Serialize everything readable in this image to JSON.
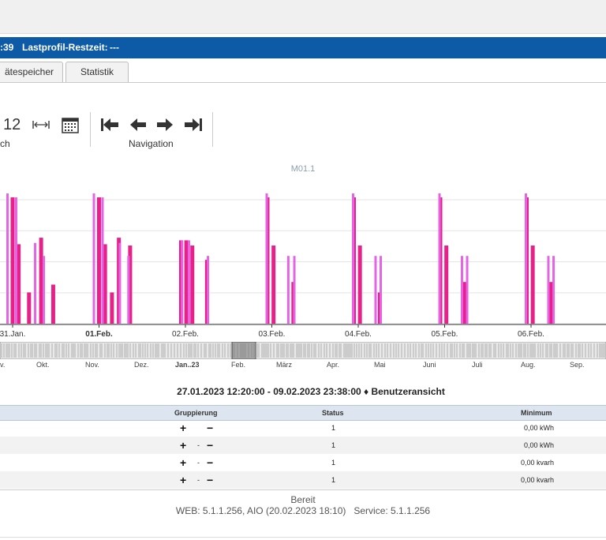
{
  "header": {
    "time_fragment": ":39",
    "lastprofil_label": "Lastprofil-Restzeit:",
    "lastprofil_value": "---"
  },
  "tabs": [
    {
      "label": "ätespeicher"
    },
    {
      "label": "Statistik"
    }
  ],
  "toolbar": {
    "value_12": "12",
    "label_left": "ch",
    "label_nav": "Navigation"
  },
  "chart_data": {
    "type": "bar",
    "title": "M01.1",
    "x_labels": [
      "31.Jan.",
      "01.Feb.",
      "02.Feb.",
      "03.Feb.",
      "04.Feb.",
      "05.Feb.",
      "06.Feb."
    ],
    "bold_label": "01.Feb.",
    "grid": true,
    "legend": "none",
    "series": [
      {
        "color": "#e8218a",
        "bars": [
          [
            0.05,
            0.97
          ],
          [
            0.12,
            0.61
          ],
          [
            0.24,
            0.24
          ],
          [
            0.38,
            0.66
          ],
          [
            0.52,
            0.3
          ],
          [
            1.05,
            0.97
          ],
          [
            1.12,
            0.61
          ],
          [
            1.2,
            0.24
          ],
          [
            1.28,
            0.66
          ],
          [
            1.41,
            0.6
          ],
          [
            2.0,
            0.64
          ],
          [
            2.06,
            0.64
          ],
          [
            2.13,
            0.6
          ],
          [
            2.3,
            0.49
          ],
          [
            3.0,
            0.97
          ],
          [
            3.07,
            0.6
          ],
          [
            3.3,
            0.32
          ],
          [
            4.0,
            0.97
          ],
          [
            4.07,
            0.6
          ],
          [
            4.3,
            0.24
          ],
          [
            5.0,
            0.97
          ],
          [
            5.07,
            0.6
          ],
          [
            5.28,
            0.32
          ],
          [
            6.0,
            0.97
          ],
          [
            6.07,
            0.6
          ],
          [
            6.28,
            0.32
          ]
        ]
      },
      {
        "color": "#e563e5",
        "bars": [
          [
            0.0,
            1.0
          ],
          [
            0.1,
            0.97
          ],
          [
            0.32,
            0.62
          ],
          [
            0.42,
            0.52
          ],
          [
            1.0,
            1.0
          ],
          [
            1.1,
            0.97
          ],
          [
            1.3,
            0.62
          ],
          [
            1.4,
            0.52
          ],
          [
            2.02,
            0.64
          ],
          [
            2.1,
            0.64
          ],
          [
            2.32,
            0.52
          ],
          [
            3.0,
            1.0
          ],
          [
            3.25,
            0.52
          ],
          [
            3.32,
            0.52
          ],
          [
            4.0,
            1.0
          ],
          [
            4.26,
            0.52
          ],
          [
            4.32,
            0.52
          ],
          [
            5.0,
            1.0
          ],
          [
            5.26,
            0.52
          ],
          [
            5.32,
            0.52
          ],
          [
            6.0,
            1.0
          ],
          [
            6.26,
            0.52
          ],
          [
            6.32,
            0.52
          ]
        ]
      }
    ]
  },
  "navigator": {
    "labels": [
      "v.",
      "Okt.",
      "Nov.",
      "Dez.",
      "Jan..23",
      "Feb.",
      "März",
      "Apr.",
      "Mai",
      "Juni",
      "Juli",
      "Aug.",
      "Sep."
    ],
    "bold_label": "Jan..23"
  },
  "range": {
    "text": "27.01.2023 12:20:00 - 09.02.2023 23:38:00 ♦ Benutzeransicht"
  },
  "table": {
    "headers": {
      "gruppierung": "Gruppierung",
      "status": "Status",
      "minimum": "Minimum"
    },
    "rows": [
      {
        "status": "1",
        "minimum": "0,00 kWh"
      },
      {
        "status": "1",
        "minimum": "0,00 kWh"
      },
      {
        "status": "1",
        "minimum": "0,00 kvarh"
      },
      {
        "status": "1",
        "minimum": "0,00 kvarh"
      }
    ],
    "plus": "+",
    "minus": "−",
    "dot": "-"
  },
  "footer": {
    "status": "Bereit",
    "version": "WEB: 5.1.1.256, AIO (20.02.2023 18:10)   Service: 5.1.1.256"
  }
}
